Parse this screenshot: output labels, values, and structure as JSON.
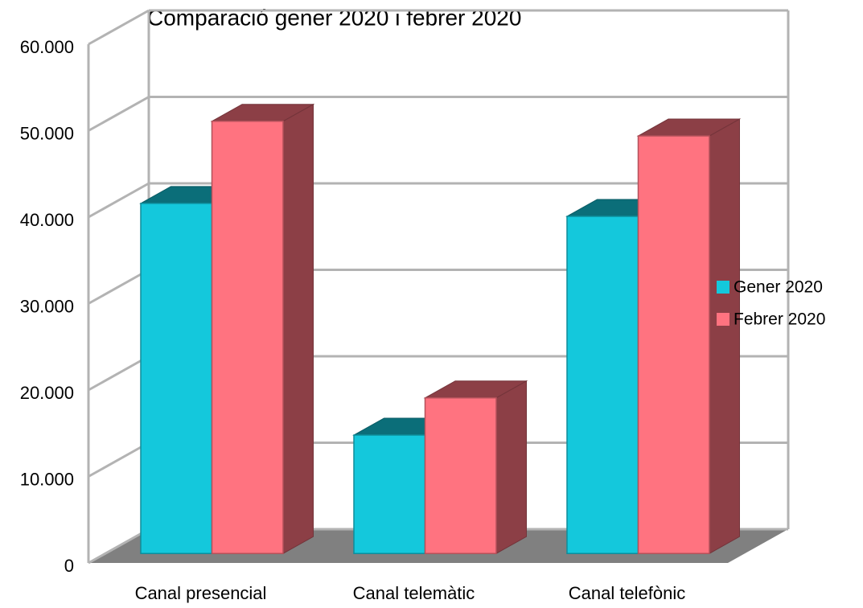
{
  "chart_data": {
    "type": "bar3d",
    "title": "Comparació gener 2020 i febrer 2020",
    "categories": [
      "Canal presencial",
      "Canal telemàtic",
      "Canal telefònic"
    ],
    "series": [
      {
        "name": "Gener 2020",
        "color": "#14c8dc",
        "values": [
          40500,
          13700,
          39000
        ]
      },
      {
        "name": "Febrer 2020",
        "color": "#ff7380",
        "values": [
          50000,
          18000,
          48300
        ]
      }
    ],
    "ylim": [
      0,
      60000
    ],
    "yticks": [
      0,
      {
        "value": 10000,
        "label": "10.000"
      },
      {
        "value": 20000,
        "label": "20.000"
      },
      {
        "value": 30000,
        "label": "30.000"
      },
      {
        "value": 40000,
        "label": "40.000"
      },
      {
        "value": 50000,
        "label": "50.000"
      },
      {
        "value": 60000,
        "label": "60.000"
      }
    ],
    "grid": true,
    "legend": "right"
  }
}
